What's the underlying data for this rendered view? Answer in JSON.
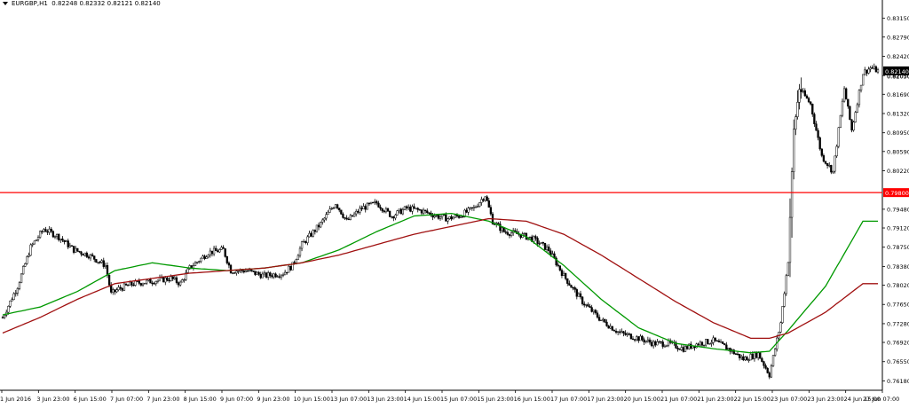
{
  "header": {
    "symbol": "EURGBP,H1",
    "ohlc": "0.82248 0.82332 0.82121 0.82140"
  },
  "colors": {
    "background": "#ffffff",
    "candle": "#000000",
    "ma_fast": "#009900",
    "ma_slow": "#a01010",
    "hline": "#ff0000",
    "price_tag_bg": "#000000",
    "hline_tag_bg": "#ff0000"
  },
  "chart_data": {
    "type": "candlestick",
    "grid": false,
    "ylim": [
      0.76,
      0.834
    ],
    "y_ticks": [
      "0.83150",
      "0.82790",
      "0.82420",
      "0.82050",
      "0.81690",
      "0.81320",
      "0.80950",
      "0.80590",
      "0.80220",
      "0.79480",
      "0.79120",
      "0.78750",
      "0.78380",
      "0.78020",
      "0.77650",
      "0.77280",
      "0.76920",
      "0.76550",
      "0.76180"
    ],
    "y_tick_values": [
      0.8315,
      0.8279,
      0.8242,
      0.8205,
      0.8169,
      0.8132,
      0.8095,
      0.8059,
      0.8022,
      0.7948,
      0.7912,
      0.7875,
      0.7838,
      0.7802,
      0.7765,
      0.7728,
      0.7692,
      0.7655,
      0.7618
    ],
    "x_ticks": [
      "1 Jun 2016",
      "3 Jun 23:00",
      "6 Jun 15:00",
      "7 Jun 07:00",
      "7 Jun 23:00",
      "8 Jun 15:00",
      "9 Jun 07:00",
      "9 Jun 23:00",
      "10 Jun 15:00",
      "13 Jun 07:00",
      "13 Jun 23:00",
      "14 Jun 15:00",
      "15 Jun 07:00",
      "15 Jun 23:00",
      "16 Jun 15:00",
      "17 Jun 07:00",
      "17 Jun 23:00",
      "20 Jun 15:00",
      "21 Jun 07:00",
      "21 Jun 23:00",
      "22 Jun 15:00",
      "23 Jun 07:00",
      "23 Jun 23:00",
      "24 Jun 15:00",
      "27 Jun 07:00"
    ],
    "horizontal_line": {
      "value": 0.798,
      "label": "0.79800"
    },
    "current_price": {
      "value": 0.8214,
      "label": "0.82140"
    },
    "current_price_secondary_label": "0.82050",
    "moving_averages": [
      {
        "color": "green",
        "path": [
          [
            0,
            0.7745
          ],
          [
            20,
            0.776
          ],
          [
            40,
            0.779
          ],
          [
            60,
            0.783
          ],
          [
            80,
            0.7845
          ],
          [
            100,
            0.7835
          ],
          [
            120,
            0.783
          ],
          [
            140,
            0.7835
          ],
          [
            160,
            0.7845
          ],
          [
            180,
            0.787
          ],
          [
            200,
            0.7905
          ],
          [
            220,
            0.7935
          ],
          [
            240,
            0.794
          ],
          [
            260,
            0.7925
          ],
          [
            280,
            0.7895
          ],
          [
            300,
            0.784
          ],
          [
            320,
            0.7775
          ],
          [
            340,
            0.772
          ],
          [
            360,
            0.769
          ],
          [
            380,
            0.768
          ],
          [
            400,
            0.7672
          ],
          [
            410,
            0.7675
          ],
          [
            420,
            0.7715
          ],
          [
            440,
            0.78
          ],
          [
            460,
            0.7925
          ]
        ]
      },
      {
        "color": "red",
        "path": [
          [
            0,
            0.771
          ],
          [
            20,
            0.774
          ],
          [
            40,
            0.7775
          ],
          [
            60,
            0.7805
          ],
          [
            80,
            0.7815
          ],
          [
            100,
            0.7825
          ],
          [
            120,
            0.783
          ],
          [
            140,
            0.7835
          ],
          [
            160,
            0.7845
          ],
          [
            180,
            0.786
          ],
          [
            200,
            0.788
          ],
          [
            220,
            0.79
          ],
          [
            240,
            0.7915
          ],
          [
            260,
            0.793
          ],
          [
            280,
            0.7925
          ],
          [
            300,
            0.79
          ],
          [
            320,
            0.786
          ],
          [
            340,
            0.7815
          ],
          [
            360,
            0.777
          ],
          [
            380,
            0.773
          ],
          [
            400,
            0.77
          ],
          [
            410,
            0.77
          ],
          [
            420,
            0.771
          ],
          [
            440,
            0.775
          ],
          [
            460,
            0.7805
          ]
        ]
      }
    ],
    "ohlc_path": [
      [
        0,
        0.774
      ],
      [
        8,
        0.78
      ],
      [
        15,
        0.7875
      ],
      [
        22,
        0.791
      ],
      [
        30,
        0.7895
      ],
      [
        38,
        0.787
      ],
      [
        46,
        0.786
      ],
      [
        55,
        0.784
      ],
      [
        58,
        0.7785
      ],
      [
        62,
        0.7795
      ],
      [
        70,
        0.7805
      ],
      [
        80,
        0.781
      ],
      [
        90,
        0.7815
      ],
      [
        95,
        0.7805
      ],
      [
        100,
        0.7835
      ],
      [
        110,
        0.7865
      ],
      [
        118,
        0.787
      ],
      [
        122,
        0.783
      ],
      [
        130,
        0.783
      ],
      [
        140,
        0.782
      ],
      [
        150,
        0.7825
      ],
      [
        155,
        0.784
      ],
      [
        160,
        0.788
      ],
      [
        170,
        0.792
      ],
      [
        178,
        0.796
      ],
      [
        184,
        0.7925
      ],
      [
        192,
        0.795
      ],
      [
        200,
        0.796
      ],
      [
        208,
        0.7935
      ],
      [
        216,
        0.795
      ],
      [
        224,
        0.7945
      ],
      [
        232,
        0.7935
      ],
      [
        238,
        0.793
      ],
      [
        244,
        0.7935
      ],
      [
        252,
        0.795
      ],
      [
        258,
        0.7975
      ],
      [
        262,
        0.7925
      ],
      [
        268,
        0.7905
      ],
      [
        276,
        0.79
      ],
      [
        284,
        0.789
      ],
      [
        292,
        0.787
      ],
      [
        300,
        0.782
      ],
      [
        310,
        0.777
      ],
      [
        320,
        0.7735
      ],
      [
        330,
        0.771
      ],
      [
        340,
        0.77
      ],
      [
        348,
        0.769
      ],
      [
        356,
        0.769
      ],
      [
        364,
        0.768
      ],
      [
        372,
        0.769
      ],
      [
        380,
        0.7695
      ],
      [
        388,
        0.768
      ],
      [
        396,
        0.766
      ],
      [
        404,
        0.767
      ],
      [
        410,
        0.763
      ],
      [
        416,
        0.773
      ],
      [
        420,
        0.785
      ],
      [
        423,
        0.81
      ],
      [
        426,
        0.818
      ],
      [
        432,
        0.815
      ],
      [
        438,
        0.805
      ],
      [
        444,
        0.802
      ],
      [
        450,
        0.818
      ],
      [
        454,
        0.81
      ],
      [
        460,
        0.821
      ],
      [
        464,
        0.822
      ],
      [
        468,
        0.8214
      ]
    ],
    "bar_count": 469
  }
}
